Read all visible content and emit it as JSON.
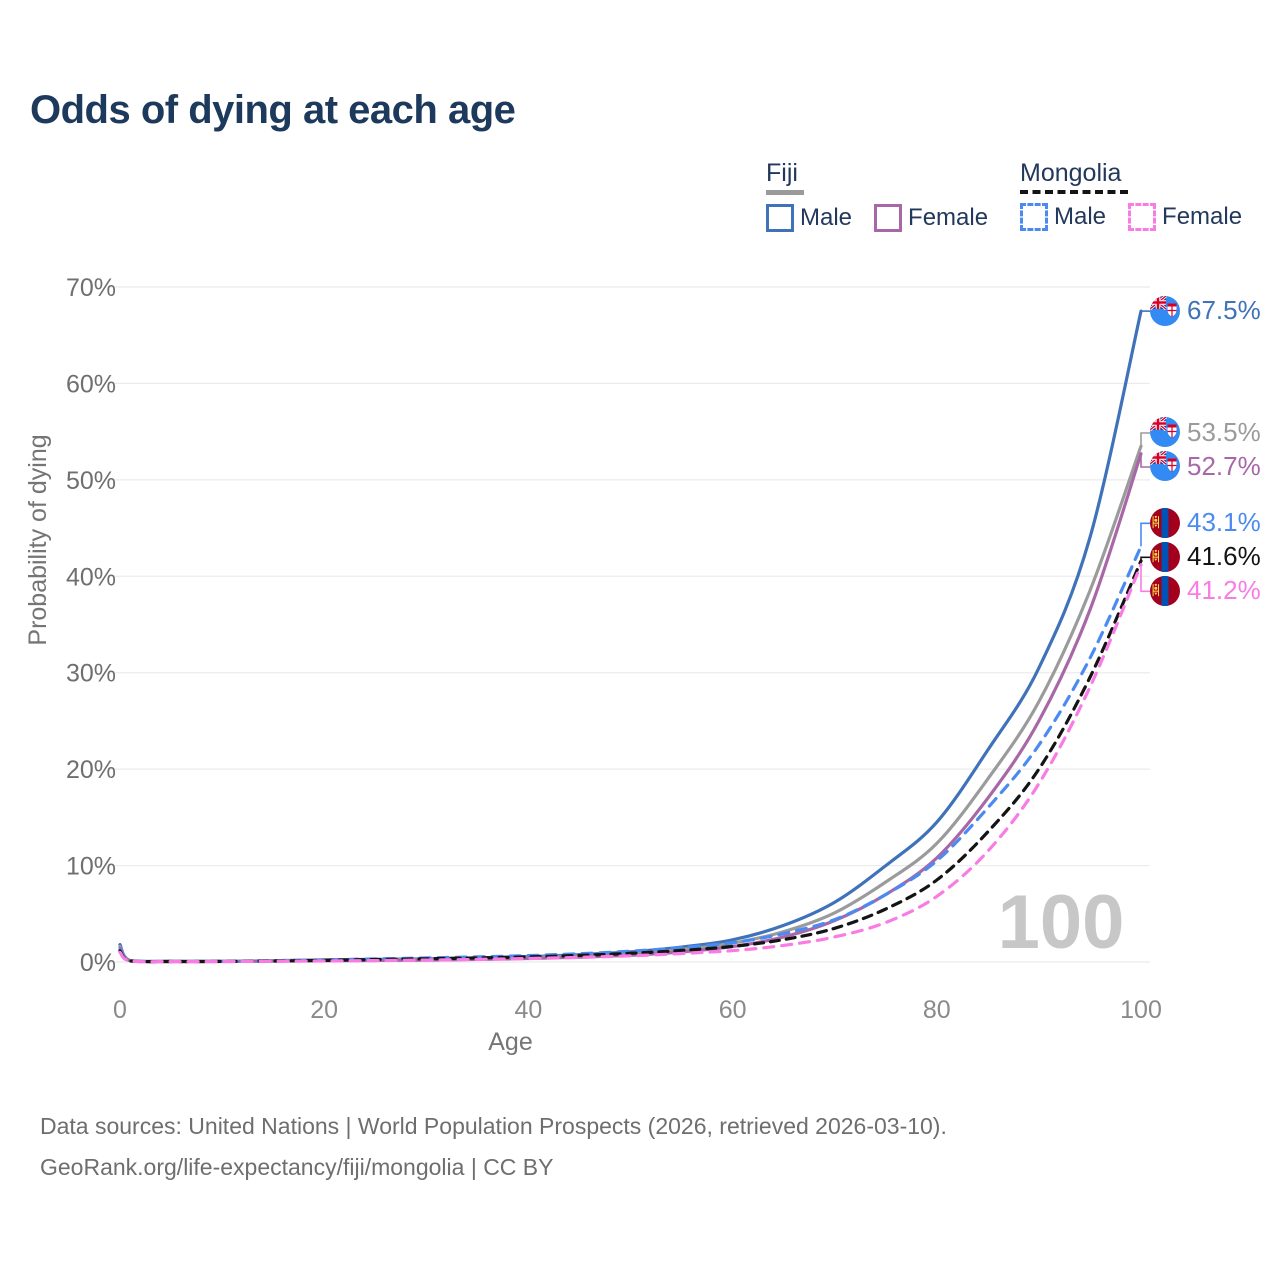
{
  "title": "Odds of dying at each age",
  "legend": {
    "groups": [
      {
        "id": "fiji",
        "label": "Fiji",
        "line_color": "#9a9a9a",
        "line_style": "solid",
        "items": [
          {
            "label": "Male",
            "color": "#3F72B8",
            "style": "solid"
          },
          {
            "label": "Female",
            "color": "#A868A8",
            "style": "solid"
          }
        ]
      },
      {
        "id": "mongolia",
        "label": "Mongolia",
        "line_color": "#141414",
        "line_style": "dashed",
        "items": [
          {
            "label": "Male",
            "color": "#4B8BF1",
            "style": "dashed"
          },
          {
            "label": "Female",
            "color": "#F97CE5",
            "style": "dashed"
          }
        ]
      }
    ]
  },
  "chart_data": {
    "type": "line",
    "title": "Odds of dying at each age",
    "xlabel": "Age",
    "ylabel": "Probability of dying",
    "xlim": [
      0,
      100
    ],
    "ylim": [
      0,
      70
    ],
    "x_tick_values": [
      0,
      20,
      40,
      60,
      80,
      100
    ],
    "x_tick_labels": [
      "0",
      "20",
      "40",
      "60",
      "80",
      "100"
    ],
    "y_tick_values": [
      0,
      10,
      20,
      30,
      40,
      50,
      60,
      70
    ],
    "y_tick_labels": [
      "0%",
      "10%",
      "20%",
      "30%",
      "40%",
      "50%",
      "60%",
      "70%"
    ],
    "grid": "horizontal",
    "watermark": "100",
    "legend_position": "top-right",
    "x": [
      0,
      1,
      5,
      10,
      15,
      20,
      25,
      30,
      35,
      40,
      45,
      50,
      55,
      60,
      65,
      70,
      75,
      80,
      85,
      90,
      95,
      100
    ],
    "series": [
      {
        "id": "fiji-male",
        "name": "Fiji Male",
        "country": "Fiji",
        "sex": "Male",
        "color": "#3F72B8",
        "style": "solid",
        "flag": "fiji",
        "end_label": "67.5%",
        "end_value": 67.5,
        "values": [
          1.8,
          0.15,
          0.06,
          0.07,
          0.13,
          0.22,
          0.27,
          0.33,
          0.43,
          0.56,
          0.76,
          1.05,
          1.55,
          2.3,
          3.8,
          6.2,
          10.0,
          14.5,
          22.0,
          30.5,
          44.0,
          67.5
        ]
      },
      {
        "id": "fiji-total",
        "name": "Fiji Both sexes",
        "country": "Fiji",
        "sex": "Both",
        "color": "#9B9B9B",
        "style": "solid",
        "flag": "fiji",
        "end_label": "53.5%",
        "end_value": 53.5,
        "values": [
          1.6,
          0.13,
          0.05,
          0.06,
          0.1,
          0.17,
          0.21,
          0.26,
          0.34,
          0.46,
          0.62,
          0.87,
          1.3,
          1.95,
          3.15,
          5.1,
          8.3,
          12.3,
          19.0,
          27.0,
          38.5,
          53.5
        ]
      },
      {
        "id": "fiji-female",
        "name": "Fiji Female",
        "country": "Fiji",
        "sex": "Female",
        "color": "#A868A8",
        "style": "solid",
        "flag": "fiji",
        "end_label": "52.7%",
        "end_value": 52.7,
        "values": [
          1.45,
          0.12,
          0.05,
          0.05,
          0.08,
          0.12,
          0.16,
          0.2,
          0.27,
          0.36,
          0.5,
          0.7,
          1.05,
          1.6,
          2.6,
          4.3,
          7.0,
          10.8,
          17.0,
          25.0,
          36.5,
          52.7
        ]
      },
      {
        "id": "mongolia-male",
        "name": "Mongolia Male",
        "country": "Mongolia",
        "sex": "Male",
        "color": "#4B8BF1",
        "style": "dashed",
        "flag": "mongolia",
        "end_label": "43.1%",
        "end_value": 43.1,
        "values": [
          1.3,
          0.12,
          0.06,
          0.07,
          0.13,
          0.22,
          0.32,
          0.42,
          0.53,
          0.66,
          0.86,
          1.12,
          1.5,
          2.0,
          2.95,
          4.4,
          7.0,
          10.5,
          16.0,
          22.5,
          31.5,
          43.1
        ]
      },
      {
        "id": "mongolia-total",
        "name": "Mongolia Both sexes",
        "country": "Mongolia",
        "sex": "Both",
        "color": "#141414",
        "style": "dashed",
        "flag": "mongolia",
        "end_label": "41.6%",
        "end_value": 41.6,
        "values": [
          1.15,
          0.1,
          0.05,
          0.06,
          0.1,
          0.17,
          0.25,
          0.33,
          0.42,
          0.53,
          0.68,
          0.9,
          1.2,
          1.62,
          2.32,
          3.5,
          5.5,
          8.5,
          13.5,
          20.0,
          29.5,
          41.6
        ]
      },
      {
        "id": "mongolia-female",
        "name": "Mongolia Female",
        "country": "Mongolia",
        "sex": "Female",
        "color": "#F97CE5",
        "style": "dashed",
        "flag": "mongolia",
        "end_label": "41.2%",
        "end_value": 41.2,
        "values": [
          1.0,
          0.09,
          0.04,
          0.05,
          0.07,
          0.11,
          0.15,
          0.2,
          0.27,
          0.36,
          0.48,
          0.64,
          0.88,
          1.18,
          1.72,
          2.6,
          4.1,
          6.8,
          11.5,
          18.5,
          28.5,
          41.2
        ]
      }
    ],
    "flags": {
      "fiji": {
        "base": "#338AF3",
        "jack_blue": "#2E3F8F",
        "red": "#D80027",
        "white": "#FFFFFF"
      },
      "mongolia": {
        "red": "#A2001D",
        "blue": "#0052B4",
        "yellow": "#FFDA44"
      }
    }
  },
  "footer": {
    "line1": "Data sources: United Nations | World Population Prospects (2026, retrieved 2026-03-10).",
    "line2": "GeoRank.org/life-expectancy/fiji/mongolia | CC BY"
  }
}
